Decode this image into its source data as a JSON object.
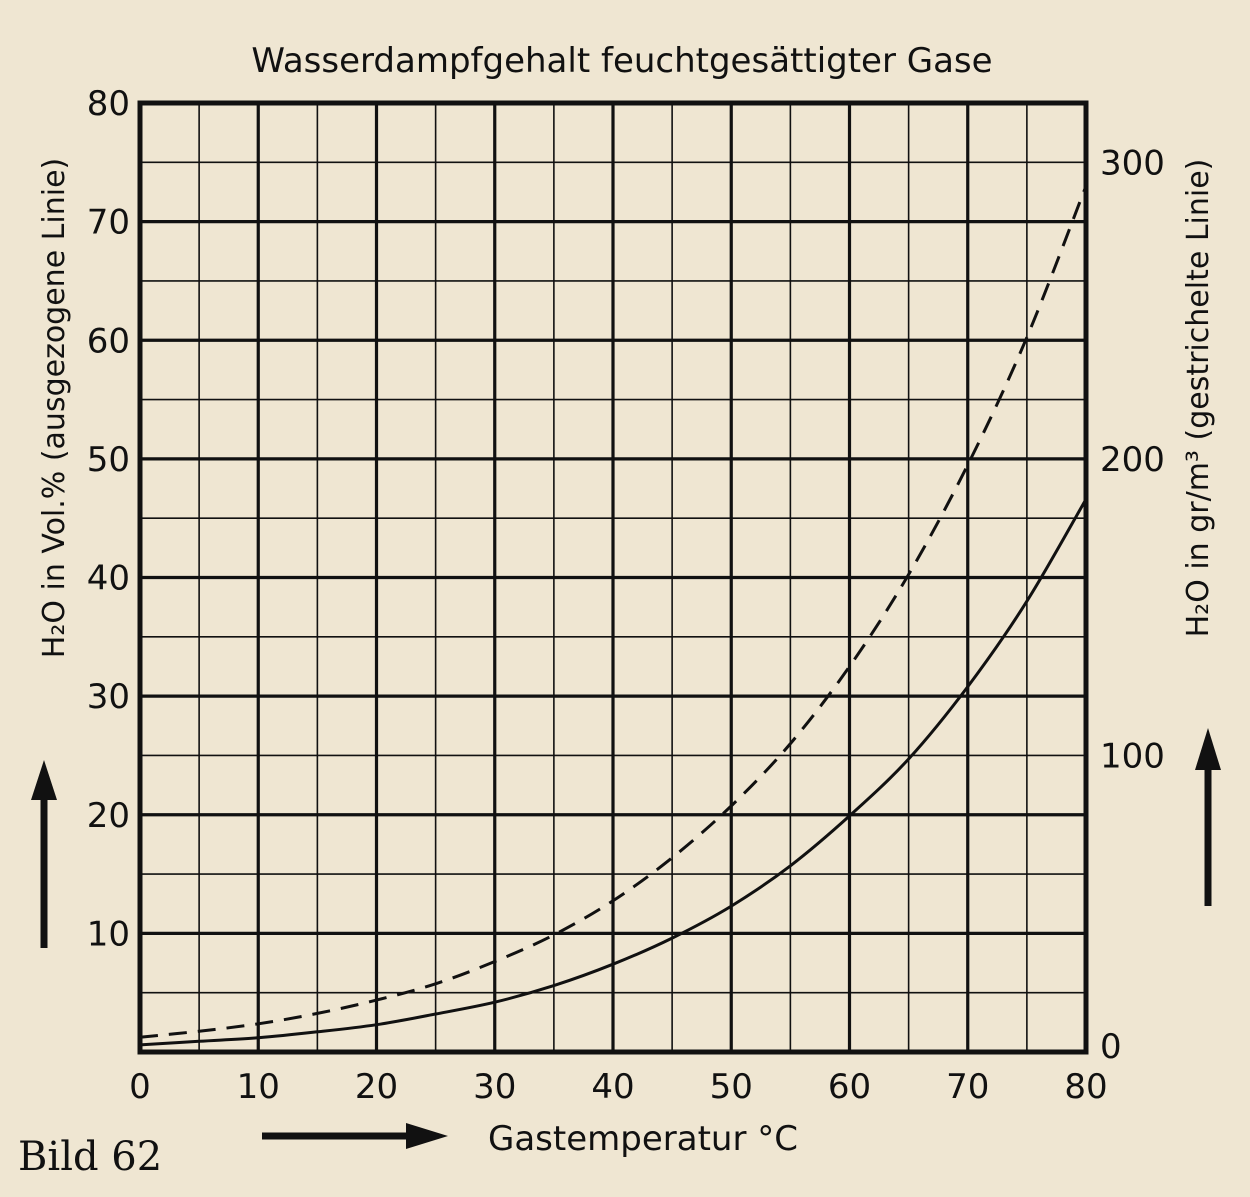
{
  "chart_data": {
    "type": "line",
    "title": "Wasserdampfgehalt feuchtgesättigter Gase",
    "xlabel": "Gastemperatur °C",
    "ylabel_left": "H₂O in Vol.% (ausgezogene Linie)",
    "ylabel_right": "H₂O in gr/m³ (gestrichelte Linie)",
    "x_ticks": [
      "0",
      "10",
      "20",
      "30",
      "40",
      "50",
      "60",
      "70",
      "80"
    ],
    "y_left_ticks": [
      "10",
      "20",
      "30",
      "40",
      "50",
      "60",
      "70",
      "80"
    ],
    "y_right_ticks": [
      "0",
      "100",
      "200",
      "300"
    ],
    "xlim": [
      0,
      80
    ],
    "ylim_left": [
      0,
      80
    ],
    "ylim_right": [
      0,
      320
    ],
    "grid": true,
    "series": [
      {
        "name": "ausgezogene Linie",
        "axis": "left",
        "style": "solid",
        "x": [
          0,
          5,
          10,
          15,
          20,
          25,
          30,
          35,
          40,
          45,
          50,
          55,
          60,
          65,
          70,
          75,
          80
        ],
        "values": [
          0.6,
          0.9,
          1.2,
          1.7,
          2.3,
          3.2,
          4.2,
          5.6,
          7.4,
          9.6,
          12.3,
          15.7,
          19.9,
          24.7,
          30.8,
          38.0,
          46.6
        ]
      },
      {
        "name": "gestrichelte Linie",
        "axis": "right",
        "style": "dashed",
        "x": [
          0,
          5,
          10,
          15,
          20,
          25,
          30,
          35,
          40,
          45,
          50,
          55,
          60,
          65,
          70,
          75,
          80
        ],
        "values": [
          5,
          7,
          9.5,
          13,
          17.5,
          23,
          30.5,
          39.5,
          51,
          65.5,
          83,
          104,
          130,
          161,
          198,
          241,
          292
        ]
      }
    ]
  },
  "figure_label": "Bild 62"
}
